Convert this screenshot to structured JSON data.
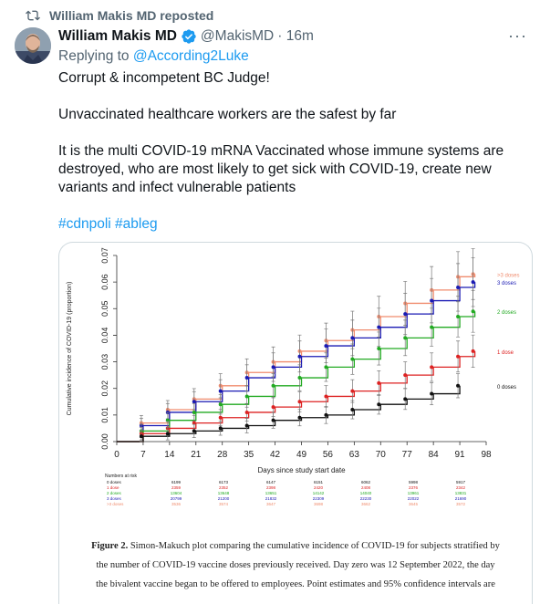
{
  "repost": {
    "label": "William Makis MD reposted"
  },
  "author": {
    "name": "William Makis MD",
    "handle": "@MakisMD",
    "time": "· 16m"
  },
  "more": "···",
  "reply": {
    "prefix": "Replying to ",
    "to": "@According2Luke"
  },
  "tweet": {
    "line1": "Corrupt & incompetent BC Judge!",
    "line2": "Unvaccinated healthcare workers are the safest by far",
    "line3a": "It is the multi COVID-19 mRNA Vaccinated whose immune systems are",
    "line3b": "destroyed, who are most likely to get sick with COVID-19, create new",
    "line3c": "variants and infect vulnerable patients",
    "hashtags": "#cdnpoli #ableg"
  },
  "colors": {
    "link": "#1d9bf0",
    "secondary": "#536471",
    "border": "#cfd9de"
  },
  "icons": [
    "repost-icon",
    "verified-badge-icon",
    "more-options-icon"
  ],
  "chart_data": {
    "type": "line",
    "ylabel": "Cumulative incidence of COVID-19 (proportion)",
    "xlabel": "Days since study start date",
    "x_ticks": [
      0,
      7,
      14,
      21,
      28,
      35,
      42,
      49,
      56,
      63,
      70,
      77,
      84,
      91,
      98
    ],
    "y_ticks": [
      "0.00",
      "0.01",
      "0.02",
      "0.03",
      "0.04",
      "0.05",
      "0.06",
      "0.07"
    ],
    "xlim": [
      0,
      98
    ],
    "ylim": [
      0,
      0.07
    ],
    "series": [
      {
        "name": ">3 doses",
        "color": "#f08c6e",
        "x": [
          0,
          7,
          14,
          21,
          28,
          35,
          42,
          49,
          56,
          63,
          70,
          77,
          84,
          91,
          95
        ],
        "values": [
          0,
          0.007,
          0.012,
          0.016,
          0.021,
          0.026,
          0.03,
          0.034,
          0.038,
          0.042,
          0.047,
          0.052,
          0.057,
          0.062,
          0.063
        ]
      },
      {
        "name": "3 doses",
        "color": "#1a1ab4",
        "x": [
          0,
          7,
          14,
          21,
          28,
          35,
          42,
          49,
          56,
          63,
          70,
          77,
          84,
          91,
          95
        ],
        "values": [
          0,
          0.006,
          0.011,
          0.015,
          0.019,
          0.024,
          0.028,
          0.032,
          0.036,
          0.039,
          0.043,
          0.048,
          0.053,
          0.058,
          0.06
        ]
      },
      {
        "name": "2 doses",
        "color": "#22aa22",
        "x": [
          0,
          7,
          14,
          21,
          28,
          35,
          42,
          49,
          56,
          63,
          70,
          77,
          84,
          91,
          95
        ],
        "values": [
          0,
          0.004,
          0.008,
          0.011,
          0.014,
          0.017,
          0.021,
          0.024,
          0.028,
          0.031,
          0.035,
          0.039,
          0.043,
          0.047,
          0.049
        ]
      },
      {
        "name": "1 dose",
        "color": "#dd2222",
        "x": [
          0,
          7,
          14,
          21,
          28,
          35,
          42,
          49,
          56,
          63,
          70,
          77,
          84,
          91,
          95
        ],
        "values": [
          0,
          0.003,
          0.005,
          0.007,
          0.009,
          0.011,
          0.013,
          0.015,
          0.017,
          0.019,
          0.022,
          0.025,
          0.028,
          0.032,
          0.034
        ]
      },
      {
        "name": "0 doses",
        "color": "#111111",
        "x": [
          0,
          7,
          14,
          21,
          28,
          35,
          42,
          49,
          56,
          63,
          70,
          77,
          84,
          91
        ],
        "values": [
          0,
          0.002,
          0.003,
          0.004,
          0.005,
          0.006,
          0.008,
          0.009,
          0.01,
          0.012,
          0.014,
          0.016,
          0.018,
          0.021
        ]
      }
    ],
    "at_risk": {
      "label": "Numbers at risk",
      "rows": [
        {
          "name": "0 doses",
          "values": [
            "6199",
            "6173",
            "6147",
            "6151",
            "6062",
            "5998",
            "5917"
          ]
        },
        {
          "name": "1 dose",
          "values": [
            "2359",
            "2352",
            "2398",
            "2420",
            "2408",
            "2376",
            "2342"
          ]
        },
        {
          "name": "2 doses",
          "values": [
            "13604",
            "13648",
            "13651",
            "14142",
            "14040",
            "13961",
            "13831"
          ]
        },
        {
          "name": "3 doses",
          "values": [
            "20799",
            "21200",
            "21832",
            "22309",
            "22230",
            "22022",
            "21690"
          ]
        },
        {
          "name": ">3 doses",
          "values": [
            "3536",
            "3574",
            "3647",
            "3698",
            "3662",
            "3645",
            "3572"
          ]
        }
      ]
    },
    "caption": {
      "fig": "Figure 2.",
      "l1": " Simon-Makuch plot comparing the cumulative incidence of COVID-19 for subjects stratified by",
      "l2": "the number of COVID-19 vaccine doses previously received. Day zero was 12 September 2022, the day",
      "l3": "the bivalent vaccine began to be offered to employees. Point estimates and 95% confidence intervals are"
    }
  }
}
